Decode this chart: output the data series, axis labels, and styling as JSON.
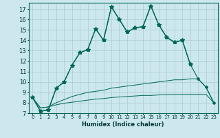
{
  "title": "",
  "xlabel": "Humidex (Indice chaleur)",
  "background_color": "#cce8ee",
  "grid_color": "#aacccc",
  "xlim": [
    -0.5,
    23.5
  ],
  "ylim": [
    7,
    17.6
  ],
  "yticks": [
    7,
    8,
    9,
    10,
    11,
    12,
    13,
    14,
    15,
    16,
    17
  ],
  "xticks": [
    0,
    1,
    2,
    3,
    4,
    5,
    6,
    7,
    8,
    9,
    10,
    11,
    12,
    13,
    14,
    15,
    16,
    17,
    18,
    19,
    20,
    21,
    22,
    23
  ],
  "xtick_labels": [
    "0",
    "1",
    "2",
    "3",
    "4",
    "5",
    "6",
    "7",
    "8",
    "9",
    "10",
    "11",
    "12",
    "13",
    "14",
    "15",
    "16",
    "17",
    "18",
    "19",
    "20",
    "21",
    "22",
    "23"
  ],
  "series": [
    {
      "x": [
        0,
        1,
        2,
        3,
        4,
        5,
        6,
        7,
        8,
        9,
        10,
        11,
        12,
        13,
        14,
        15,
        16,
        17,
        18,
        19,
        20
      ],
      "y": [
        8.5,
        7.2,
        7.3,
        9.4,
        10.0,
        11.6,
        12.8,
        13.1,
        15.1,
        14.0,
        17.2,
        16.0,
        14.8,
        15.2,
        15.3,
        17.3,
        15.5,
        14.3,
        13.8,
        14.0,
        11.7
      ],
      "color": "#006655",
      "lw": 1.0,
      "marker": "*",
      "ms": 4
    },
    {
      "x": [
        0,
        1,
        2,
        3,
        4,
        5,
        6,
        7,
        8,
        9,
        10,
        11,
        12,
        13,
        14,
        15,
        16,
        17,
        18,
        19,
        20,
        21,
        22,
        23
      ],
      "y": [
        8.5,
        7.2,
        7.3,
        9.4,
        10.0,
        11.6,
        12.8,
        13.1,
        15.1,
        14.0,
        17.2,
        16.0,
        14.8,
        15.2,
        15.3,
        17.3,
        15.5,
        14.3,
        13.8,
        14.0,
        11.7,
        10.3,
        9.5,
        8.0
      ],
      "color": "#006655",
      "lw": 0.8,
      "marker": "D",
      "ms": 2
    },
    {
      "x": [
        0,
        1,
        2,
        3,
        4,
        5,
        6,
        7,
        8,
        9,
        10,
        11,
        12,
        13,
        14,
        15,
        16,
        17,
        18,
        19,
        20,
        21,
        22,
        23
      ],
      "y": [
        8.5,
        7.5,
        7.6,
        8.0,
        8.3,
        8.6,
        8.8,
        9.0,
        9.1,
        9.2,
        9.4,
        9.5,
        9.6,
        9.7,
        9.8,
        9.9,
        10.0,
        10.1,
        10.2,
        10.2,
        10.3,
        10.3,
        9.5,
        8.0
      ],
      "color": "#006655",
      "lw": 0.7,
      "marker": null,
      "ms": 0
    },
    {
      "x": [
        0,
        1,
        2,
        3,
        4,
        5,
        6,
        7,
        8,
        9,
        10,
        11,
        12,
        13,
        14,
        15,
        16,
        17,
        18,
        19,
        20,
        21,
        22,
        23
      ],
      "y": [
        8.5,
        7.5,
        7.6,
        7.8,
        7.95,
        8.05,
        8.15,
        8.25,
        8.35,
        8.4,
        8.5,
        8.55,
        8.6,
        8.65,
        8.7,
        8.7,
        8.75,
        8.78,
        8.8,
        8.8,
        8.82,
        8.82,
        8.8,
        8.0
      ],
      "color": "#006655",
      "lw": 0.7,
      "marker": null,
      "ms": 0
    }
  ]
}
